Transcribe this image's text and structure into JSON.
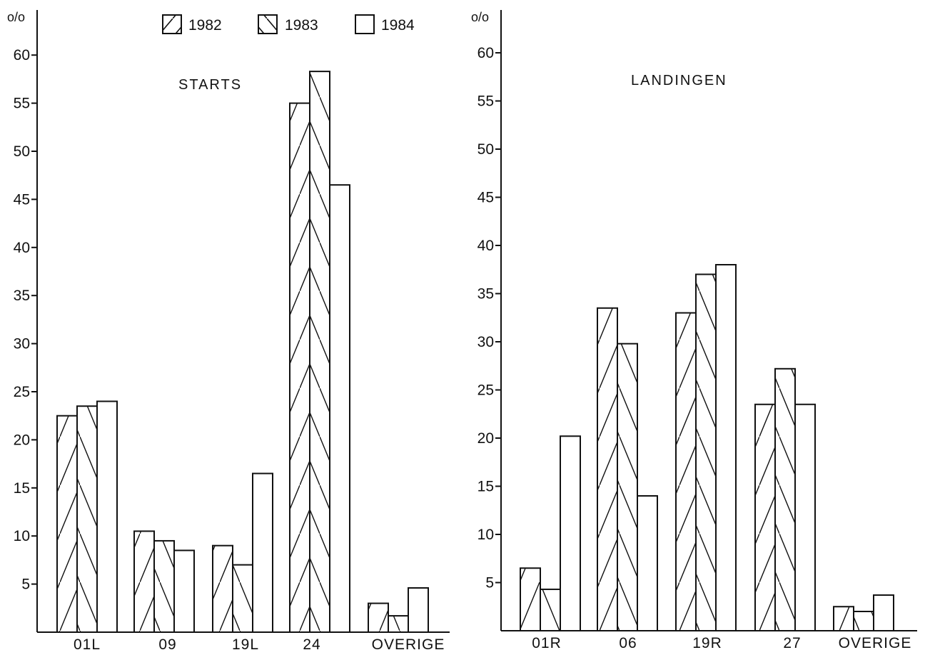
{
  "legend": [
    {
      "label": "1982",
      "pattern": "hatch-forward"
    },
    {
      "label": "1983",
      "pattern": "hatch-back"
    },
    {
      "label": "1984",
      "pattern": "empty"
    }
  ],
  "chart_data": [
    {
      "type": "bar",
      "title": "STARTS",
      "ylabel": "o/o",
      "ylim": [
        0,
        63
      ],
      "yticks": [
        "5",
        "10",
        "15",
        "20",
        "25",
        "30",
        "35",
        "40",
        "45",
        "50",
        "55",
        "60"
      ],
      "categories": [
        "01L",
        "09",
        "19L",
        "24",
        "OVERIGE"
      ],
      "series": [
        {
          "name": "1982",
          "values": [
            22.5,
            10.5,
            9,
            55,
            3
          ]
        },
        {
          "name": "1983",
          "values": [
            23.5,
            9.5,
            7,
            58.3,
            1.7
          ]
        },
        {
          "name": "1984",
          "values": [
            24,
            8.5,
            16.5,
            46.5,
            4.6
          ]
        }
      ],
      "grid": false,
      "legend_position": "top-right"
    },
    {
      "type": "bar",
      "title": "LANDINGEN",
      "ylabel": "o/o",
      "ylim": [
        0,
        63
      ],
      "yticks": [
        "5",
        "10",
        "15",
        "20",
        "25",
        "30",
        "35",
        "40",
        "45",
        "50",
        "55",
        "60"
      ],
      "categories": [
        "01R",
        "06",
        "19R",
        "27",
        "OVERIGE"
      ],
      "series": [
        {
          "name": "1982",
          "values": [
            6.5,
            33.5,
            33,
            23.5,
            2.5
          ]
        },
        {
          "name": "1983",
          "values": [
            4.3,
            29.8,
            37,
            27.2,
            2
          ]
        },
        {
          "name": "1984",
          "values": [
            20.2,
            14,
            38,
            23.5,
            3.7
          ]
        }
      ],
      "grid": false
    }
  ]
}
